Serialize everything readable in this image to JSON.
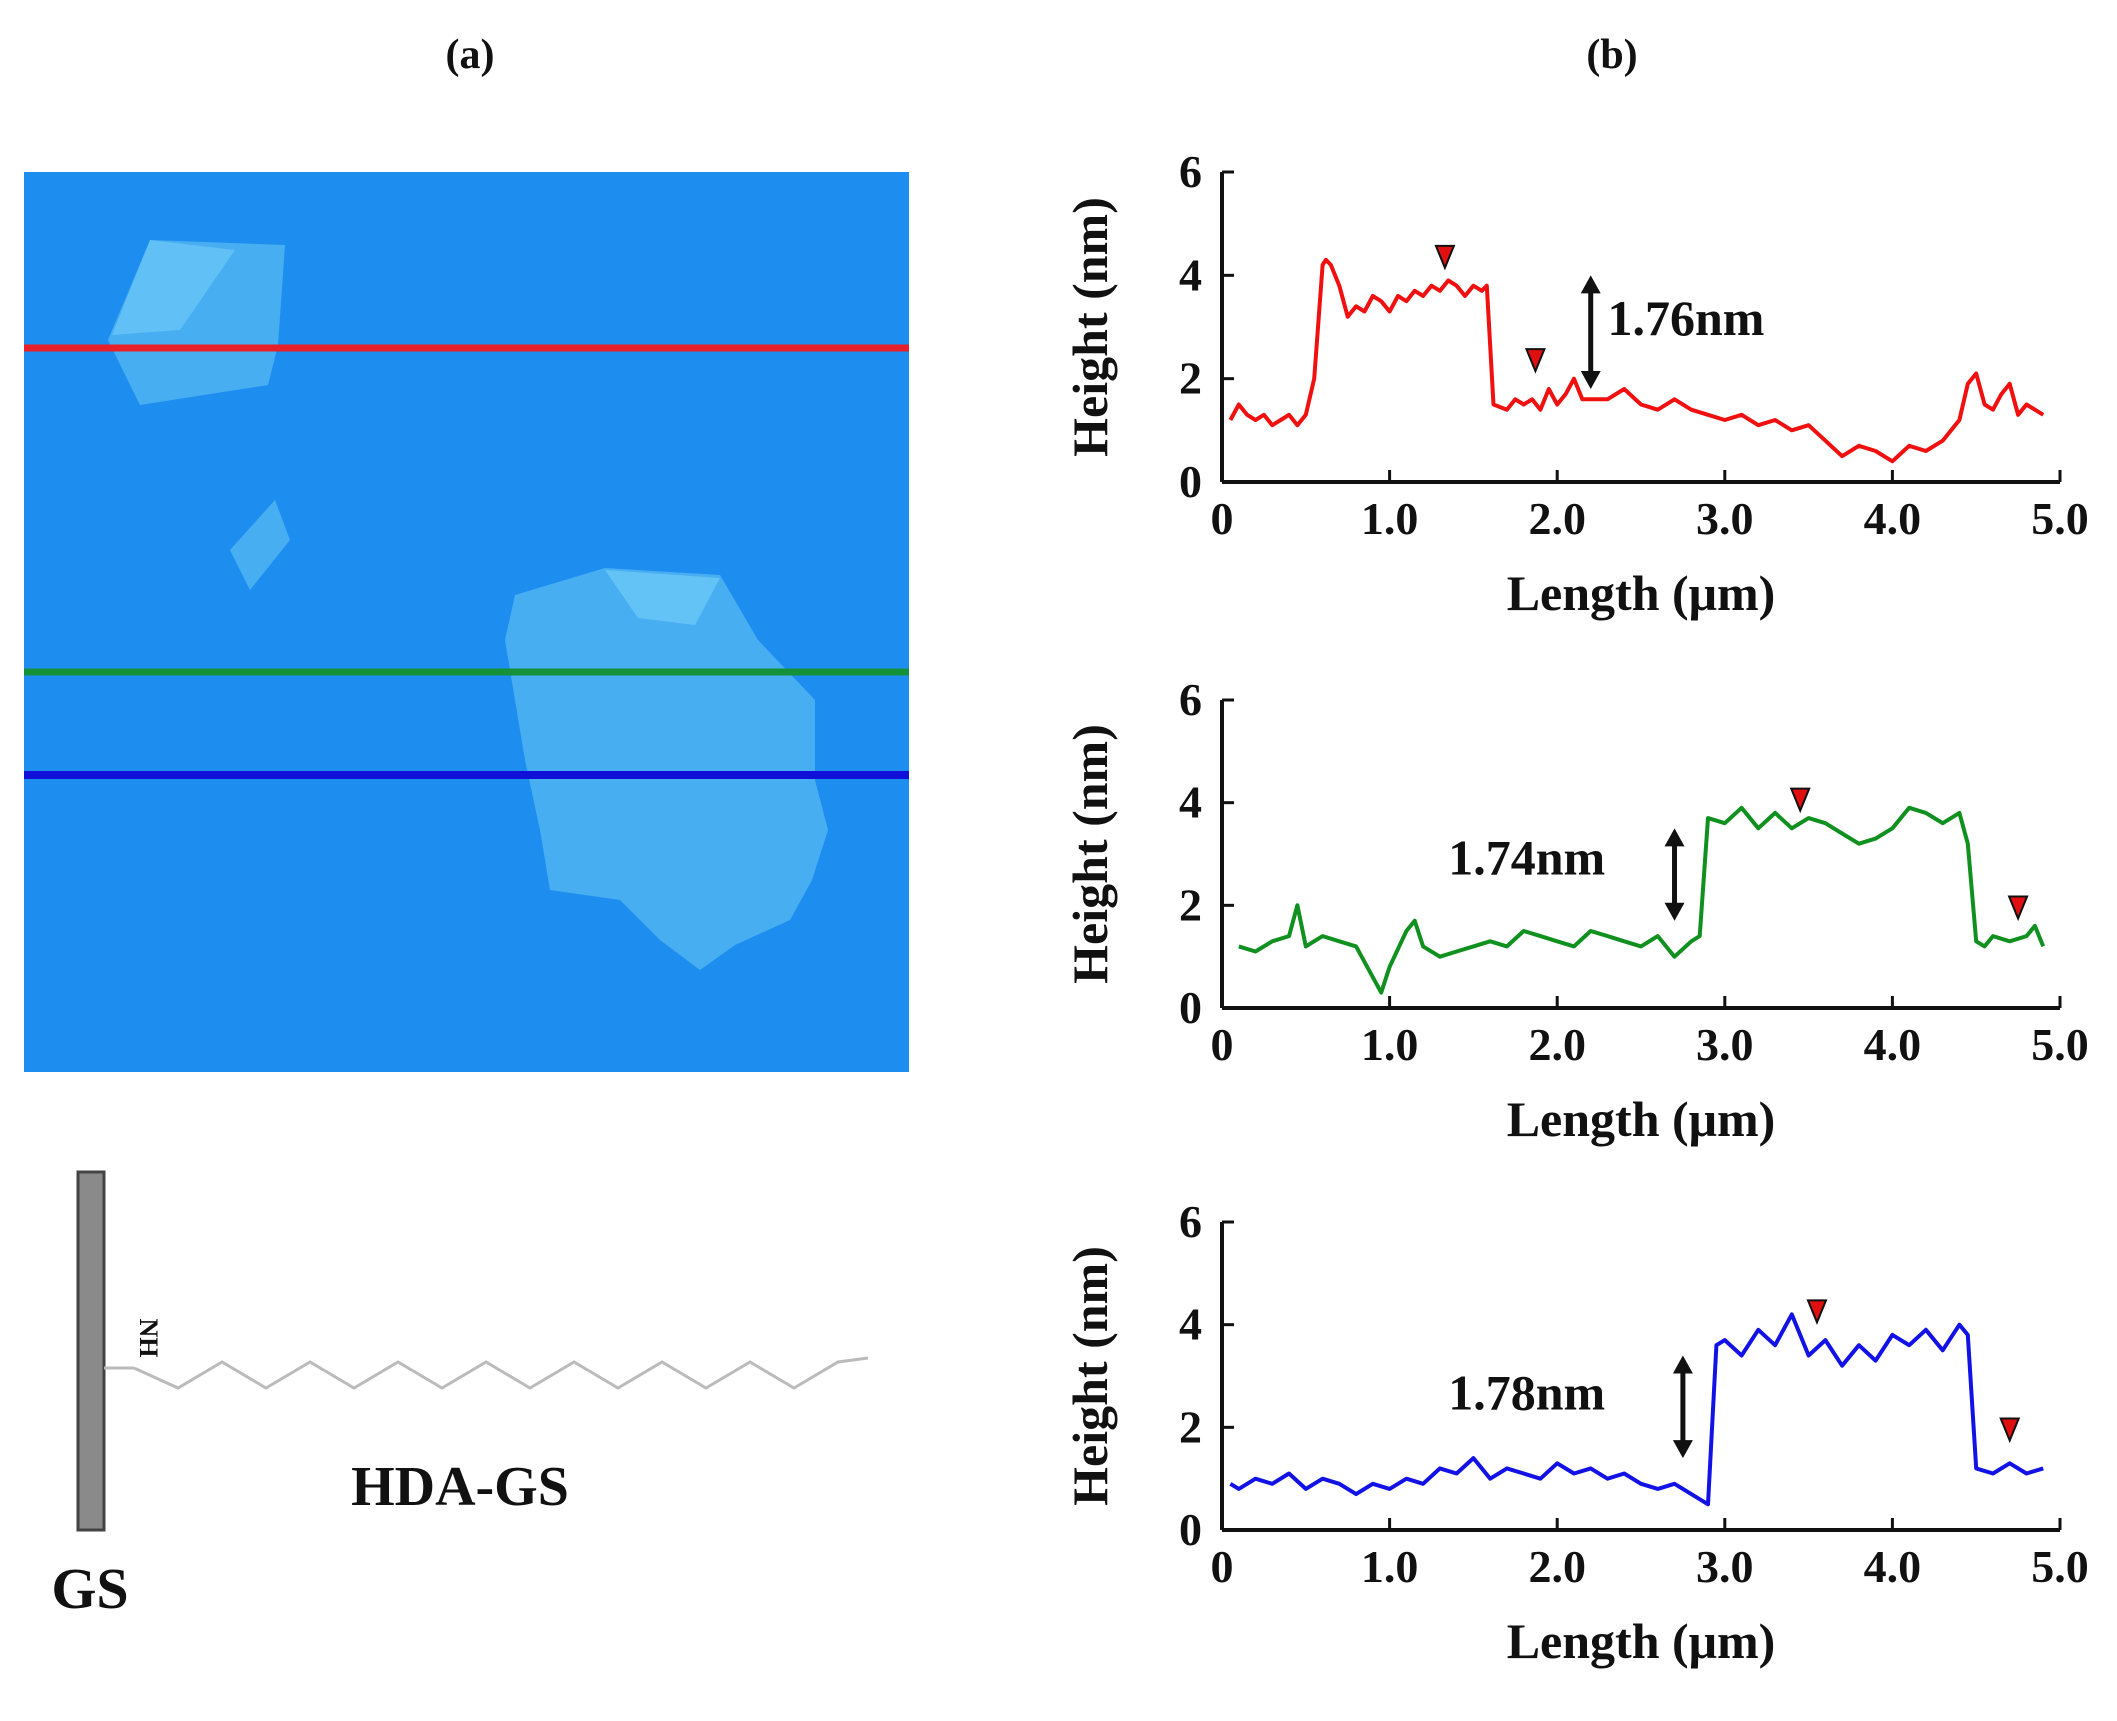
{
  "panel_labels": {
    "a": "(a)",
    "b": "(b)"
  },
  "afm_image": {
    "background": "#1e8df0",
    "flake_color": "#48aef2",
    "highlight_color": "#6cc8f6",
    "lines": [
      {
        "name": "red",
        "color": "#e8202a"
      },
      {
        "name": "green",
        "color": "#15913a"
      },
      {
        "name": "blue",
        "color": "#1010d8"
      }
    ]
  },
  "schematic": {
    "nh_label": "NH",
    "sheet_label": "GS",
    "compound_label": "HDA-GS"
  },
  "chart_data": [
    {
      "type": "line",
      "color": "#f01010",
      "xlabel": "Length (μm)",
      "ylabel": "Height (nm)",
      "xlim": [
        0,
        5.0
      ],
      "ylim": [
        0,
        6
      ],
      "xticks": [
        "0",
        "1.0",
        "2.0",
        "3.0",
        "4.0",
        "5.0"
      ],
      "yticks": [
        "0",
        "2",
        "4",
        "6"
      ],
      "annotation": "1.76nm",
      "step_x": 2.2,
      "step_y": [
        1.8,
        4.0
      ],
      "label_x": 2.3,
      "label_y": 2.85,
      "markers": [
        [
          1.33,
          4.3
        ],
        [
          1.87,
          2.3
        ]
      ],
      "x": [
        0.05,
        0.1,
        0.15,
        0.2,
        0.25,
        0.3,
        0.35,
        0.4,
        0.45,
        0.5,
        0.55,
        0.6,
        0.62,
        0.65,
        0.7,
        0.75,
        0.8,
        0.85,
        0.9,
        0.95,
        1.0,
        1.05,
        1.1,
        1.15,
        1.2,
        1.25,
        1.3,
        1.35,
        1.4,
        1.45,
        1.5,
        1.55,
        1.58,
        1.62,
        1.7,
        1.75,
        1.8,
        1.85,
        1.9,
        1.95,
        2.0,
        2.05,
        2.1,
        2.15,
        2.2,
        2.3,
        2.4,
        2.5,
        2.6,
        2.7,
        2.8,
        2.9,
        3.0,
        3.1,
        3.2,
        3.3,
        3.4,
        3.5,
        3.6,
        3.7,
        3.8,
        3.9,
        4.0,
        4.1,
        4.2,
        4.3,
        4.4,
        4.45,
        4.5,
        4.55,
        4.6,
        4.65,
        4.7,
        4.75,
        4.8,
        4.85,
        4.9
      ],
      "y": [
        1.2,
        1.5,
        1.3,
        1.2,
        1.3,
        1.1,
        1.2,
        1.3,
        1.1,
        1.3,
        2.0,
        4.2,
        4.3,
        4.2,
        3.8,
        3.2,
        3.4,
        3.3,
        3.6,
        3.5,
        3.3,
        3.6,
        3.5,
        3.7,
        3.6,
        3.8,
        3.7,
        3.9,
        3.8,
        3.6,
        3.8,
        3.7,
        3.8,
        1.5,
        1.4,
        1.6,
        1.5,
        1.6,
        1.4,
        1.8,
        1.5,
        1.7,
        2.0,
        1.6,
        1.6,
        1.6,
        1.8,
        1.5,
        1.4,
        1.6,
        1.4,
        1.3,
        1.2,
        1.3,
        1.1,
        1.2,
        1.0,
        1.1,
        0.8,
        0.5,
        0.7,
        0.6,
        0.4,
        0.7,
        0.6,
        0.8,
        1.2,
        1.9,
        2.1,
        1.5,
        1.4,
        1.7,
        1.9,
        1.3,
        1.5,
        1.4,
        1.3
      ]
    },
    {
      "type": "line",
      "color": "#10901e",
      "xlabel": "Length (μm)",
      "ylabel": "Height (nm)",
      "xlim": [
        0,
        5.0
      ],
      "ylim": [
        0,
        6
      ],
      "xticks": [
        "0",
        "1.0",
        "2.0",
        "3.0",
        "4.0",
        "5.0"
      ],
      "yticks": [
        "0",
        "2",
        "4",
        "6"
      ],
      "annotation": "1.74nm",
      "step_x": 2.7,
      "step_y": [
        1.7,
        3.5
      ],
      "label_x": 1.35,
      "label_y": 2.6,
      "markers": [
        [
          3.45,
          4.0
        ],
        [
          4.75,
          1.9
        ]
      ],
      "x": [
        0.1,
        0.2,
        0.3,
        0.4,
        0.45,
        0.5,
        0.6,
        0.7,
        0.8,
        0.9,
        0.95,
        1.0,
        1.1,
        1.15,
        1.2,
        1.3,
        1.4,
        1.5,
        1.6,
        1.7,
        1.8,
        1.9,
        2.0,
        2.1,
        2.2,
        2.3,
        2.4,
        2.5,
        2.6,
        2.7,
        2.8,
        2.85,
        2.9,
        3.0,
        3.1,
        3.2,
        3.3,
        3.4,
        3.5,
        3.6,
        3.7,
        3.8,
        3.9,
        4.0,
        4.1,
        4.2,
        4.3,
        4.4,
        4.45,
        4.5,
        4.55,
        4.6,
        4.7,
        4.8,
        4.85,
        4.9
      ],
      "y": [
        1.2,
        1.1,
        1.3,
        1.4,
        2.0,
        1.2,
        1.4,
        1.3,
        1.2,
        0.6,
        0.3,
        0.8,
        1.5,
        1.7,
        1.2,
        1.0,
        1.1,
        1.2,
        1.3,
        1.2,
        1.5,
        1.4,
        1.3,
        1.2,
        1.5,
        1.4,
        1.3,
        1.2,
        1.4,
        1.0,
        1.3,
        1.4,
        3.7,
        3.6,
        3.9,
        3.5,
        3.8,
        3.5,
        3.7,
        3.6,
        3.4,
        3.2,
        3.3,
        3.5,
        3.9,
        3.8,
        3.6,
        3.8,
        3.2,
        1.3,
        1.2,
        1.4,
        1.3,
        1.4,
        1.6,
        1.2
      ]
    },
    {
      "type": "line",
      "color": "#1212e6",
      "xlabel": "Length (μm)",
      "ylabel": "Height (nm)",
      "xlim": [
        0,
        5.0
      ],
      "ylim": [
        0,
        6
      ],
      "xticks": [
        "0",
        "1.0",
        "2.0",
        "3.0",
        "4.0",
        "5.0"
      ],
      "yticks": [
        "0",
        "2",
        "4",
        "6"
      ],
      "annotation": "1.78nm",
      "step_x": 2.75,
      "step_y": [
        1.4,
        3.4
      ],
      "label_x": 1.35,
      "label_y": 2.35,
      "markers": [
        [
          3.55,
          4.2
        ],
        [
          4.7,
          1.9
        ]
      ],
      "x": [
        0.05,
        0.1,
        0.2,
        0.3,
        0.4,
        0.5,
        0.6,
        0.7,
        0.8,
        0.9,
        1.0,
        1.1,
        1.2,
        1.3,
        1.4,
        1.5,
        1.6,
        1.7,
        1.8,
        1.9,
        2.0,
        2.1,
        2.2,
        2.3,
        2.4,
        2.5,
        2.6,
        2.7,
        2.8,
        2.9,
        2.95,
        3.0,
        3.1,
        3.2,
        3.3,
        3.4,
        3.5,
        3.6,
        3.7,
        3.8,
        3.9,
        4.0,
        4.1,
        4.2,
        4.3,
        4.4,
        4.45,
        4.5,
        4.6,
        4.7,
        4.8,
        4.9
      ],
      "y": [
        0.9,
        0.8,
        1.0,
        0.9,
        1.1,
        0.8,
        1.0,
        0.9,
        0.7,
        0.9,
        0.8,
        1.0,
        0.9,
        1.2,
        1.1,
        1.4,
        1.0,
        1.2,
        1.1,
        1.0,
        1.3,
        1.1,
        1.2,
        1.0,
        1.1,
        0.9,
        0.8,
        0.9,
        0.7,
        0.5,
        3.6,
        3.7,
        3.4,
        3.9,
        3.6,
        4.2,
        3.4,
        3.7,
        3.2,
        3.6,
        3.3,
        3.8,
        3.6,
        3.9,
        3.5,
        4.0,
        3.8,
        1.2,
        1.1,
        1.3,
        1.1,
        1.2
      ]
    }
  ]
}
